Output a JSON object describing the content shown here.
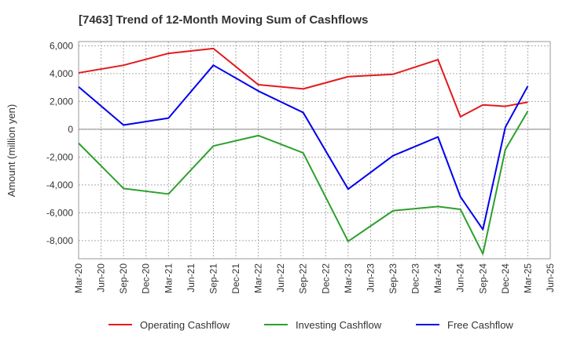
{
  "chart_data": {
    "type": "line",
    "title": "[7463]  Trend of 12-Month Moving Sum of Cashflows",
    "ylabel": "Amount (million yen)",
    "xlabel": "",
    "ylim": [
      -9300,
      6300
    ],
    "yticks": [
      6000,
      4000,
      2000,
      0,
      -2000,
      -4000,
      -6000,
      -8000
    ],
    "ytick_labels": [
      "6,000",
      "4,000",
      "2,000",
      "0",
      "-2,000",
      "-4,000",
      "-6,000",
      "-8,000"
    ],
    "categories": [
      "Mar-20",
      "Jun-20",
      "Sep-20",
      "Dec-20",
      "Mar-21",
      "Jun-21",
      "Sep-21",
      "Dec-21",
      "Mar-22",
      "Jun-22",
      "Sep-22",
      "Dec-22",
      "Mar-23",
      "Jun-23",
      "Sep-23",
      "Dec-23",
      "Mar-24",
      "Jun-24",
      "Sep-24",
      "Dec-24",
      "Mar-25",
      "Jun-25"
    ],
    "grid": true,
    "legend_position": "bottom",
    "series": [
      {
        "name": "Operating Cashflow",
        "color": "#e31a1c",
        "x": [
          "Mar-20",
          "Sep-20",
          "Mar-21",
          "Sep-21",
          "Mar-22",
          "Sep-22",
          "Mar-23",
          "Sep-23",
          "Mar-24",
          "Jun-24",
          "Sep-24",
          "Dec-24",
          "Mar-25"
        ],
        "values": [
          4050,
          4600,
          5450,
          5800,
          3200,
          2900,
          3780,
          3950,
          5000,
          900,
          1750,
          1650,
          1950
        ]
      },
      {
        "name": "Investing Cashflow",
        "color": "#2ca02c",
        "x": [
          "Mar-20",
          "Sep-20",
          "Mar-21",
          "Sep-21",
          "Mar-22",
          "Sep-22",
          "Mar-23",
          "Sep-23",
          "Mar-24",
          "Jun-24",
          "Sep-24",
          "Dec-24",
          "Mar-25"
        ],
        "values": [
          -1000,
          -4250,
          -4650,
          -1200,
          -450,
          -1700,
          -8050,
          -5850,
          -5550,
          -5750,
          -8950,
          -1450,
          1300
        ]
      },
      {
        "name": "Free Cashflow",
        "color": "#0000ee",
        "x": [
          "Mar-20",
          "Sep-20",
          "Mar-21",
          "Sep-21",
          "Mar-22",
          "Sep-22",
          "Mar-23",
          "Sep-23",
          "Mar-24",
          "Jun-24",
          "Sep-24",
          "Dec-24",
          "Mar-25"
        ],
        "values": [
          3050,
          300,
          800,
          4600,
          2750,
          1200,
          -4300,
          -1900,
          -550,
          -4850,
          -7200,
          150,
          3100
        ]
      }
    ]
  }
}
